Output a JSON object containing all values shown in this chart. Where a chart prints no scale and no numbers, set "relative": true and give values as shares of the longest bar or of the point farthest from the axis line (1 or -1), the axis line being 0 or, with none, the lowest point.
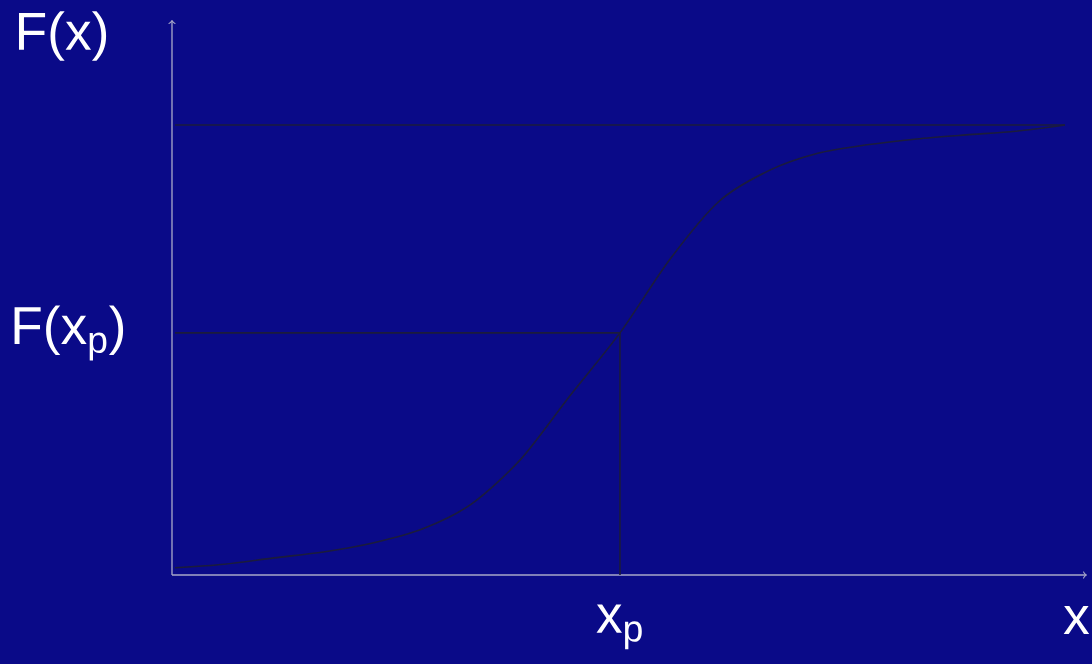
{
  "chart_data": {
    "type": "line",
    "relative": true,
    "xlabel": "x",
    "ylabel": "F(x)",
    "categories": [
      null,
      null,
      null,
      null,
      null,
      null,
      null,
      null,
      null,
      null,
      null,
      null,
      null,
      null,
      null,
      null,
      null,
      null,
      null
    ],
    "annotations": [
      "x$_{p}$"
    ],
    "series": [
      {
        "color": "#1c1c3c",
        "values": [
          0.016,
          0.024,
          0.038,
          0.051,
          0.071,
          0.102,
          0.158,
          0.258,
          0.4,
          0.538,
          0.7,
          0.83,
          0.898,
          0.937,
          0.956,
          0.969,
          0.978,
          0.986,
          1
        ]
      }
    ],
    "ref_lines": [
      {
        "axis": "y",
        "value": 1,
        "color": "#1c1c3c"
      },
      {
        "axis": "y",
        "value": 0.538,
        "label": "F(x$_{p}$)",
        "color": "#1c1c3c"
      }
    ]
  }
}
